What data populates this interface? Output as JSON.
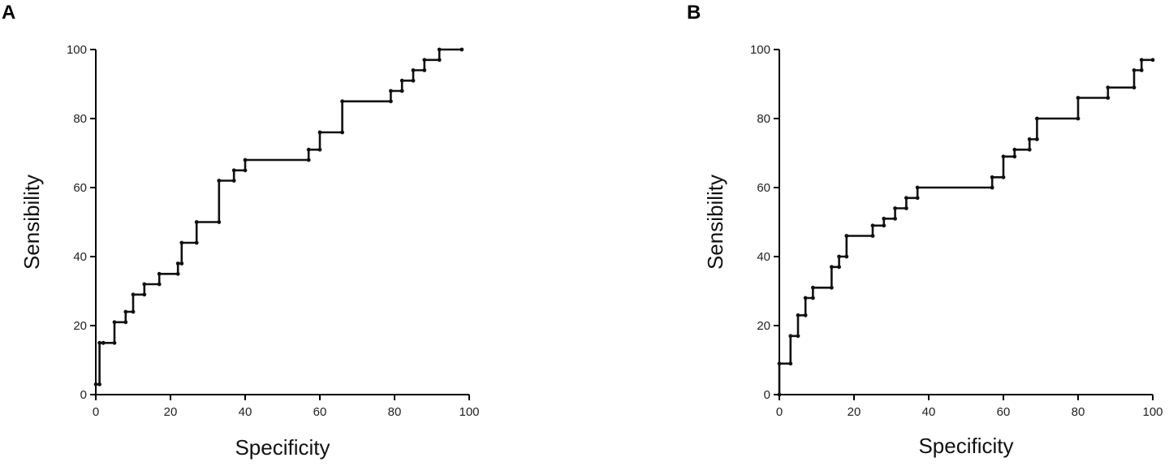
{
  "chart_data": [
    {
      "panel_label": "A",
      "type": "line",
      "xlabel": "Specificity",
      "ylabel": "Sensibility",
      "xlim": [
        0,
        100
      ],
      "ylim": [
        0,
        100
      ],
      "xticks": [
        "0",
        "20",
        "40",
        "60",
        "80",
        "100"
      ],
      "yticks": [
        "0",
        "20",
        "40",
        "60",
        "80",
        "100"
      ],
      "grid": false,
      "series": [
        {
          "x": [
            0,
            1,
            1,
            2,
            2,
            5,
            5,
            8,
            8,
            10,
            10,
            13,
            13,
            17,
            17,
            22,
            22,
            23,
            23,
            27,
            27,
            33,
            33,
            37,
            37,
            40,
            40,
            57,
            57,
            60,
            60,
            66,
            66,
            79,
            79,
            82,
            82,
            85,
            85,
            88,
            88,
            92,
            92,
            98
          ],
          "y": [
            3,
            3,
            15,
            15,
            15,
            15,
            21,
            21,
            24,
            24,
            29,
            29,
            32,
            32,
            35,
            35,
            38,
            38,
            44,
            44,
            50,
            50,
            62,
            62,
            65,
            65,
            68,
            68,
            71,
            71,
            76,
            76,
            85,
            85,
            88,
            88,
            91,
            91,
            94,
            94,
            97,
            97,
            100,
            100
          ]
        }
      ]
    },
    {
      "panel_label": "B",
      "type": "line",
      "xlabel": "Specificity",
      "ylabel": "Sensibility",
      "xlim": [
        0,
        100
      ],
      "ylim": [
        0,
        100
      ],
      "xticks": [
        "0",
        "20",
        "40",
        "60",
        "80",
        "100"
      ],
      "yticks": [
        "0",
        "20",
        "40",
        "60",
        "80",
        "100"
      ],
      "grid": false,
      "series": [
        {
          "x": [
            0,
            0,
            3,
            3,
            5,
            5,
            7,
            7,
            9,
            9,
            14,
            14,
            16,
            16,
            18,
            18,
            25,
            25,
            28,
            28,
            31,
            31,
            34,
            34,
            37,
            37,
            57,
            57,
            60,
            60,
            63,
            63,
            67,
            67,
            69,
            69,
            80,
            80,
            88,
            88,
            95,
            95,
            97,
            97,
            100
          ],
          "y": [
            0,
            9,
            9,
            17,
            17,
            23,
            23,
            28,
            28,
            31,
            31,
            37,
            37,
            40,
            40,
            46,
            46,
            49,
            49,
            51,
            51,
            54,
            54,
            57,
            57,
            60,
            60,
            63,
            63,
            69,
            69,
            71,
            71,
            74,
            74,
            80,
            80,
            86,
            86,
            89,
            89,
            94,
            94,
            97,
            97
          ]
        }
      ]
    }
  ]
}
